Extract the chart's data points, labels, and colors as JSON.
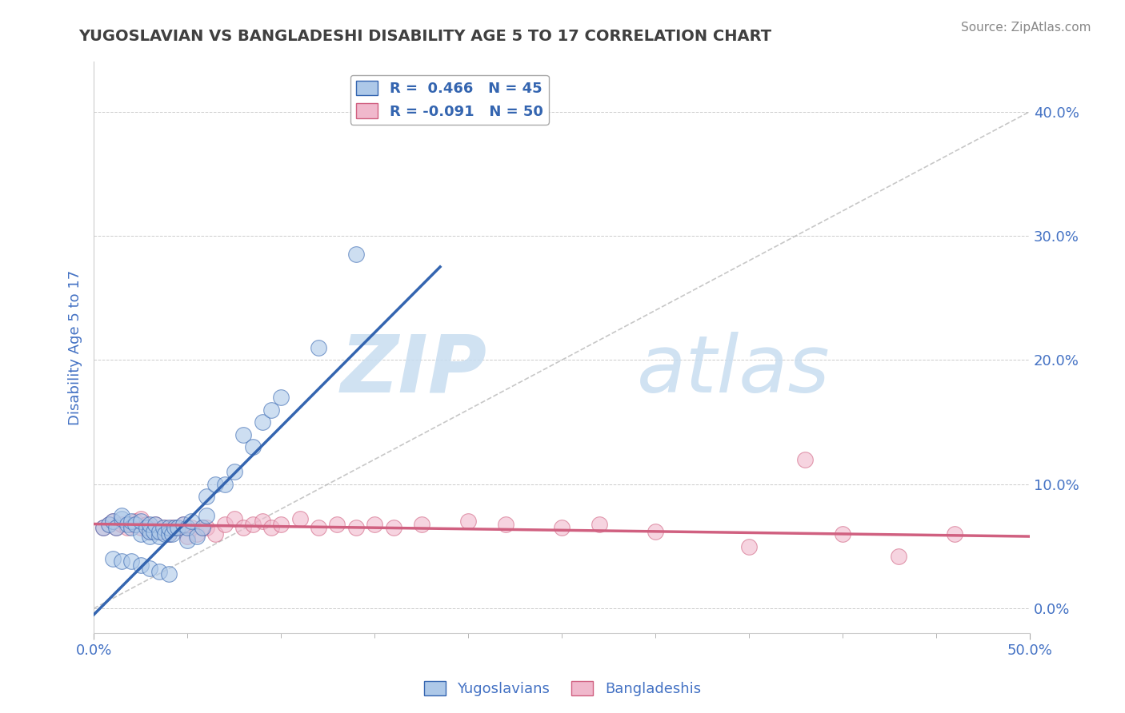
{
  "title": "YUGOSLAVIAN VS BANGLADESHI DISABILITY AGE 5 TO 17 CORRELATION CHART",
  "source": "Source: ZipAtlas.com",
  "ylabel": "Disability Age 5 to 17",
  "xlim": [
    0.0,
    0.5
  ],
  "ylim": [
    -0.02,
    0.44
  ],
  "yticks": [
    0.0,
    0.1,
    0.2,
    0.3,
    0.4
  ],
  "ytick_labels": [
    "0.0%",
    "10.0%",
    "20.0%",
    "30.0%",
    "40.0%"
  ],
  "blue_color": "#adc8e8",
  "blue_line_color": "#3465b0",
  "pink_color": "#f0b8cc",
  "pink_line_color": "#d06080",
  "legend_blue_R": "R =  0.466",
  "legend_blue_N": "N = 45",
  "legend_pink_R": "R = -0.091",
  "legend_pink_N": "N = 50",
  "blue_scatter_x": [
    0.005,
    0.008,
    0.01,
    0.012,
    0.015,
    0.015,
    0.018,
    0.02,
    0.02,
    0.022,
    0.025,
    0.025,
    0.028,
    0.03,
    0.03,
    0.03,
    0.032,
    0.033,
    0.035,
    0.035,
    0.037,
    0.038,
    0.04,
    0.04,
    0.042,
    0.043,
    0.045,
    0.048,
    0.05,
    0.05,
    0.052,
    0.055,
    0.058,
    0.06,
    0.06,
    0.065,
    0.07,
    0.075,
    0.08,
    0.085,
    0.09,
    0.095,
    0.1,
    0.12,
    0.14
  ],
  "blue_scatter_y": [
    0.065,
    0.068,
    0.07,
    0.065,
    0.072,
    0.075,
    0.068,
    0.065,
    0.07,
    0.068,
    0.06,
    0.07,
    0.065,
    0.058,
    0.062,
    0.068,
    0.062,
    0.068,
    0.058,
    0.062,
    0.065,
    0.06,
    0.06,
    0.065,
    0.06,
    0.065,
    0.065,
    0.068,
    0.055,
    0.065,
    0.07,
    0.058,
    0.065,
    0.075,
    0.09,
    0.1,
    0.1,
    0.11,
    0.14,
    0.13,
    0.15,
    0.16,
    0.17,
    0.21,
    0.285
  ],
  "blue_extra_x": [
    0.01,
    0.015,
    0.02,
    0.025,
    0.03,
    0.035,
    0.04
  ],
  "blue_extra_y": [
    0.04,
    0.038,
    0.038,
    0.035,
    0.032,
    0.03,
    0.028
  ],
  "pink_scatter_x": [
    0.005,
    0.008,
    0.01,
    0.012,
    0.015,
    0.018,
    0.02,
    0.022,
    0.025,
    0.025,
    0.028,
    0.03,
    0.03,
    0.033,
    0.035,
    0.038,
    0.04,
    0.042,
    0.045,
    0.048,
    0.05,
    0.052,
    0.055,
    0.058,
    0.06,
    0.065,
    0.07,
    0.075,
    0.08,
    0.085,
    0.09,
    0.095,
    0.1,
    0.11,
    0.12,
    0.13,
    0.14,
    0.15,
    0.16,
    0.175,
    0.2,
    0.22,
    0.25,
    0.27,
    0.3,
    0.35,
    0.38,
    0.4,
    0.43,
    0.46
  ],
  "pink_scatter_y": [
    0.065,
    0.068,
    0.07,
    0.065,
    0.068,
    0.065,
    0.068,
    0.07,
    0.065,
    0.072,
    0.068,
    0.062,
    0.065,
    0.068,
    0.062,
    0.065,
    0.06,
    0.065,
    0.065,
    0.068,
    0.058,
    0.065,
    0.06,
    0.065,
    0.065,
    0.06,
    0.068,
    0.072,
    0.065,
    0.068,
    0.07,
    0.065,
    0.068,
    0.072,
    0.065,
    0.068,
    0.065,
    0.068,
    0.065,
    0.068,
    0.07,
    0.068,
    0.065,
    0.068,
    0.062,
    0.05,
    0.12,
    0.06,
    0.042,
    0.06
  ],
  "watermark_zip": "ZIP",
  "watermark_atlas": "atlas",
  "background_color": "#ffffff",
  "grid_color": "#cccccc",
  "title_color": "#404040",
  "axis_label_color": "#4472c4",
  "tick_color": "#4472c4",
  "ref_line_color": "#b0b0b0"
}
